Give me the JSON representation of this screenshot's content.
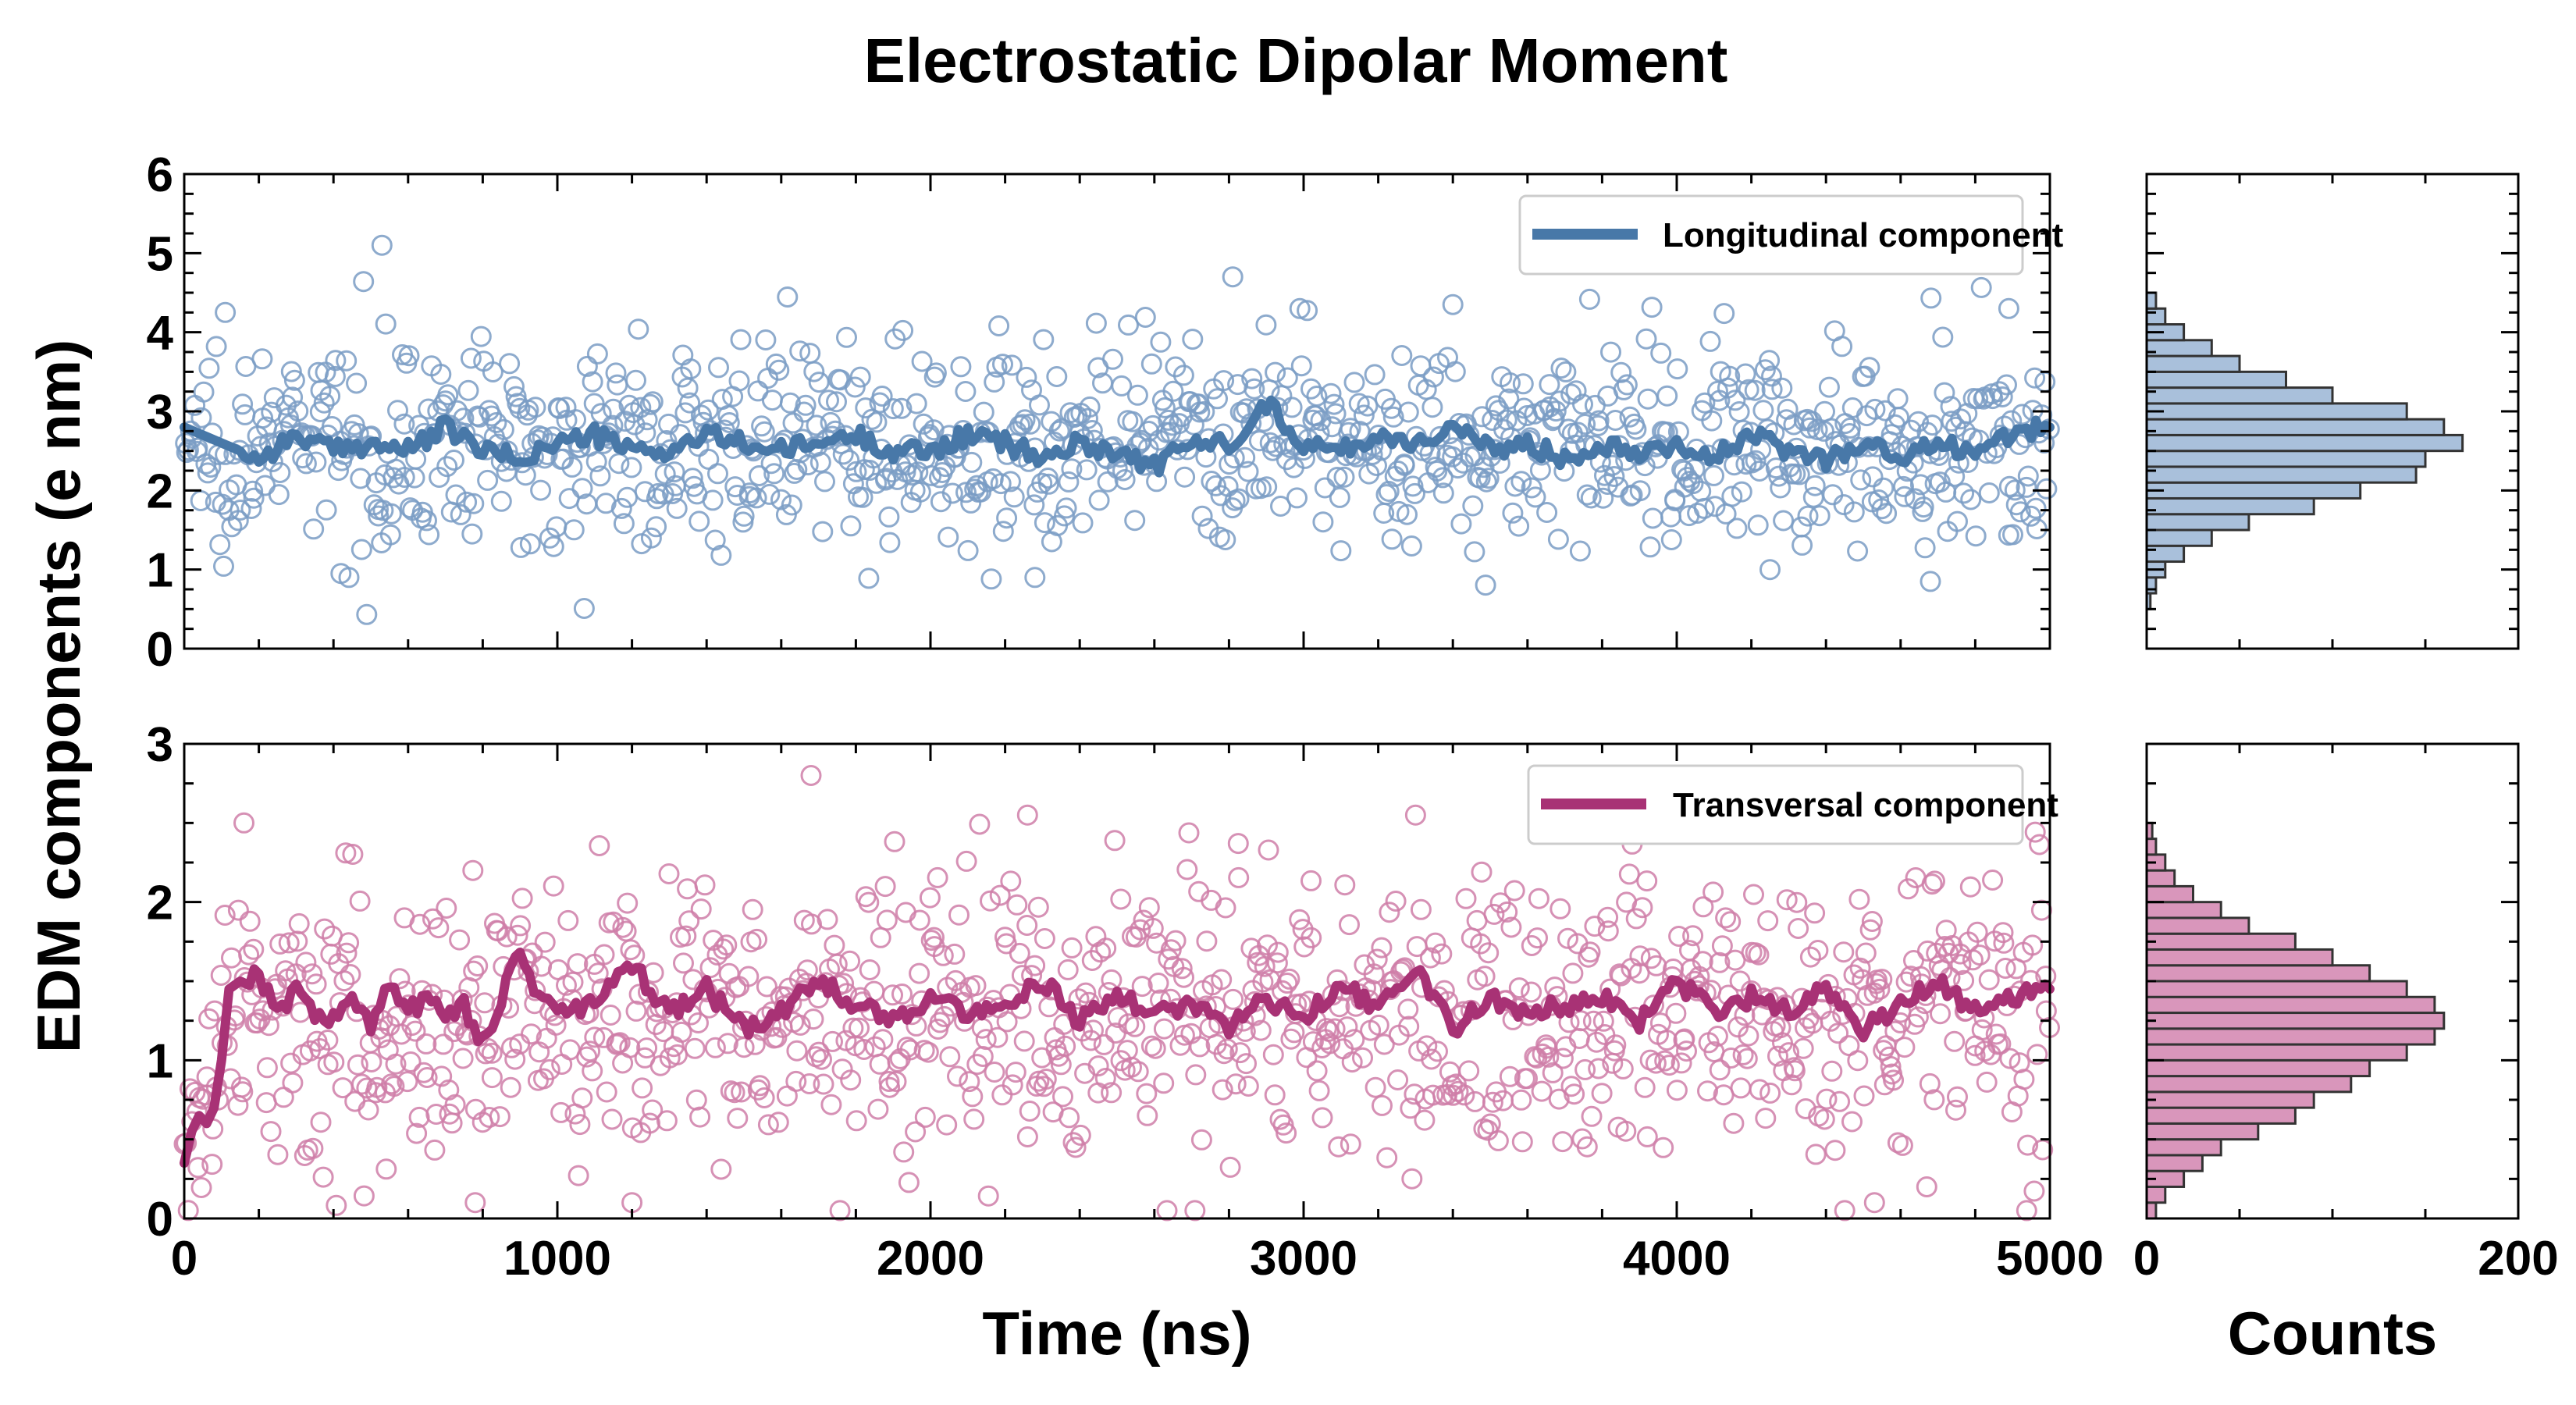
{
  "chart_data": {
    "type": "scatter",
    "title": "Electrostatic Dipolar Moment",
    "xlabel": "Time (ns)",
    "ylabel": "EDM components (e nm)",
    "hist_xlabel": "Counts",
    "grid": false,
    "legend_position": "top-right",
    "x_ticks": [
      0,
      1000,
      2000,
      3000,
      4000,
      5000
    ],
    "hist_x_ticks": [
      0,
      200
    ],
    "panels": [
      {
        "id": "longitudinal",
        "series_name": "Longitudinal component",
        "color": "#4878a8",
        "marker_color": "#7a9cc4",
        "hist_fill": "#a9c0db",
        "xlim": [
          0,
          5000
        ],
        "ylim": [
          0,
          6
        ],
        "y_ticks": [
          0,
          1,
          2,
          3,
          4,
          5,
          6
        ],
        "scatter_stats": {
          "mean": 2.6,
          "sd": 0.62,
          "n": 1000
        },
        "outliers": [
          [
            530,
            5.1
          ],
          [
            2810,
            4.7
          ],
          [
            3400,
            4.35
          ],
          [
            2990,
            4.3
          ],
          [
            4890,
            4.3
          ],
          [
            110,
            4.25
          ],
          [
            4680,
            0.85
          ],
          [
            2280,
            0.9
          ],
          [
            420,
            0.95
          ],
          [
            4250,
            1.0
          ]
        ],
        "running_average": {
          "x": [
            0,
            100,
            200,
            300,
            400,
            500,
            600,
            700,
            800,
            900,
            1000,
            1100,
            1200,
            1300,
            1400,
            1500,
            1600,
            1700,
            1800,
            1900,
            2000,
            2100,
            2200,
            2300,
            2400,
            2500,
            2600,
            2700,
            2800,
            2900,
            3000,
            3100,
            3200,
            3300,
            3400,
            3500,
            3600,
            3700,
            3800,
            3900,
            4000,
            4100,
            4200,
            4300,
            4400,
            4500,
            4600,
            4700,
            4800,
            4900,
            5000
          ],
          "y": [
            2.8,
            2.6,
            2.4,
            2.7,
            2.5,
            2.6,
            2.5,
            2.8,
            2.5,
            2.4,
            2.6,
            2.7,
            2.5,
            2.5,
            2.7,
            2.6,
            2.5,
            2.6,
            2.7,
            2.5,
            2.5,
            2.7,
            2.6,
            2.4,
            2.6,
            2.5,
            2.3,
            2.6,
            2.6,
            3.1,
            2.6,
            2.5,
            2.7,
            2.6,
            2.8,
            2.5,
            2.6,
            2.4,
            2.6,
            2.5,
            2.6,
            2.4,
            2.7,
            2.5,
            2.4,
            2.6,
            2.4,
            2.6,
            2.5,
            2.7,
            2.8
          ]
        },
        "histogram": {
          "bin_edges": [
            0.5,
            0.7,
            0.9,
            1.1,
            1.3,
            1.5,
            1.7,
            1.9,
            2.1,
            2.3,
            2.5,
            2.7,
            2.9,
            3.1,
            3.3,
            3.5,
            3.7,
            3.9,
            4.1,
            4.3,
            4.5
          ],
          "counts": [
            2,
            5,
            10,
            20,
            35,
            55,
            90,
            115,
            145,
            150,
            170,
            160,
            140,
            100,
            75,
            50,
            35,
            20,
            10,
            5
          ],
          "xlim": [
            0,
            200
          ]
        }
      },
      {
        "id": "transversal",
        "series_name": "Transversal component",
        "color": "#a83275",
        "marker_color": "#cf7ea8",
        "hist_fill": "#d996bb",
        "xlim": [
          0,
          5000
        ],
        "ylim": [
          0,
          3
        ],
        "y_ticks": [
          0,
          1,
          2,
          3
        ],
        "scatter_stats": {
          "mean": 1.3,
          "sd": 0.44,
          "n": 1000
        },
        "outliers": [
          [
            1680,
            2.8
          ],
          [
            2260,
            2.55
          ],
          [
            3300,
            2.55
          ],
          [
            160,
            2.5
          ],
          [
            1200,
            0.1
          ],
          [
            4530,
            0.1
          ],
          [
            780,
            0.1
          ],
          [
            4670,
            0.2
          ]
        ],
        "running_average": {
          "x": [
            0,
            20,
            40,
            60,
            80,
            100,
            120,
            150,
            200,
            250,
            300,
            350,
            400,
            450,
            500,
            550,
            600,
            650,
            700,
            750,
            800,
            850,
            900,
            950,
            1000,
            1100,
            1200,
            1300,
            1400,
            1500,
            1600,
            1700,
            1800,
            1900,
            2000,
            2100,
            2200,
            2300,
            2400,
            2500,
            2600,
            2700,
            2800,
            2900,
            3000,
            3100,
            3200,
            3300,
            3400,
            3500,
            3600,
            3700,
            3800,
            3900,
            4000,
            4100,
            4200,
            4300,
            4400,
            4500,
            4600,
            4700,
            4800,
            4900,
            5000
          ],
          "y": [
            0.35,
            0.55,
            0.65,
            0.6,
            0.7,
            1.0,
            1.45,
            1.5,
            1.55,
            1.3,
            1.45,
            1.3,
            1.25,
            1.4,
            1.2,
            1.5,
            1.3,
            1.4,
            1.3,
            1.35,
            1.1,
            1.4,
            1.7,
            1.4,
            1.3,
            1.35,
            1.6,
            1.3,
            1.45,
            1.2,
            1.3,
            1.5,
            1.35,
            1.25,
            1.4,
            1.3,
            1.35,
            1.5,
            1.25,
            1.4,
            1.3,
            1.35,
            1.2,
            1.4,
            1.25,
            1.5,
            1.3,
            1.6,
            1.2,
            1.4,
            1.3,
            1.35,
            1.4,
            1.25,
            1.5,
            1.3,
            1.4,
            1.3,
            1.45,
            1.2,
            1.35,
            1.5,
            1.3,
            1.4,
            1.45
          ]
        },
        "histogram": {
          "bin_edges": [
            0.0,
            0.1,
            0.2,
            0.3,
            0.4,
            0.5,
            0.6,
            0.7,
            0.8,
            0.9,
            1.0,
            1.1,
            1.2,
            1.3,
            1.4,
            1.5,
            1.6,
            1.7,
            1.8,
            1.9,
            2.0,
            2.1,
            2.2,
            2.3,
            2.4,
            2.5
          ],
          "counts": [
            5,
            10,
            20,
            30,
            40,
            60,
            80,
            90,
            110,
            120,
            140,
            155,
            160,
            155,
            140,
            120,
            100,
            80,
            55,
            40,
            25,
            15,
            10,
            5,
            3
          ],
          "xlim": [
            0,
            200
          ]
        }
      }
    ]
  }
}
